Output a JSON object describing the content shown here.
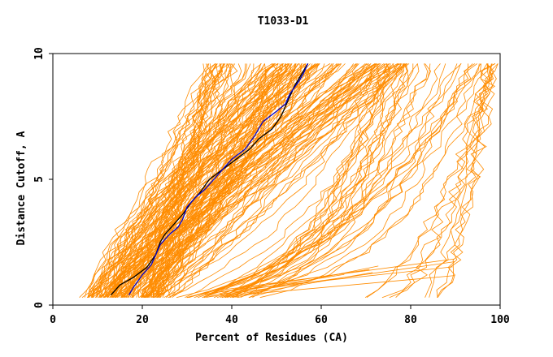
{
  "chart_data": {
    "type": "line",
    "title": "T1033-D1",
    "xlabel": "Percent of Residues (CA)",
    "ylabel": "Distance Cutoff, A",
    "xlim": [
      0,
      100
    ],
    "ylim": [
      0,
      10
    ],
    "x_ticks": [
      "0",
      "20",
      "40",
      "60",
      "80",
      "100"
    ],
    "y_ticks": [
      "0",
      "5",
      "10"
    ],
    "grid": false,
    "legend": "none",
    "colors": {
      "models": "#ff8c00",
      "highlight_black": "#000000",
      "highlight_blue": "#0000cc",
      "axis": "#000000"
    },
    "series": [
      {
        "x": [
          13,
          15,
          18,
          21,
          23,
          24,
          25,
          27,
          29,
          31,
          33,
          35,
          38,
          41,
          44,
          46,
          49,
          51,
          52,
          53,
          54,
          55,
          56,
          57
        ],
        "y": [
          0.4,
          0.8,
          1.1,
          1.5,
          2.0,
          2.5,
          2.8,
          3.2,
          3.6,
          4.1,
          4.5,
          5.0,
          5.4,
          5.8,
          6.2,
          6.6,
          7.0,
          7.5,
          7.9,
          8.3,
          8.7,
          9.0,
          9.3,
          9.6
        ]
      },
      {
        "x": [
          17,
          18,
          20,
          22,
          23,
          24,
          26,
          28,
          29,
          30,
          32,
          34,
          36,
          38,
          40,
          43,
          45,
          47,
          50,
          52,
          53,
          55,
          56,
          57
        ],
        "y": [
          0.4,
          0.7,
          1.2,
          1.6,
          2.0,
          2.4,
          2.8,
          3.1,
          3.4,
          3.9,
          4.3,
          4.6,
          5.0,
          5.4,
          5.8,
          6.2,
          6.7,
          7.3,
          7.7,
          8.0,
          8.4,
          8.9,
          9.2,
          9.6
        ]
      }
    ]
  }
}
